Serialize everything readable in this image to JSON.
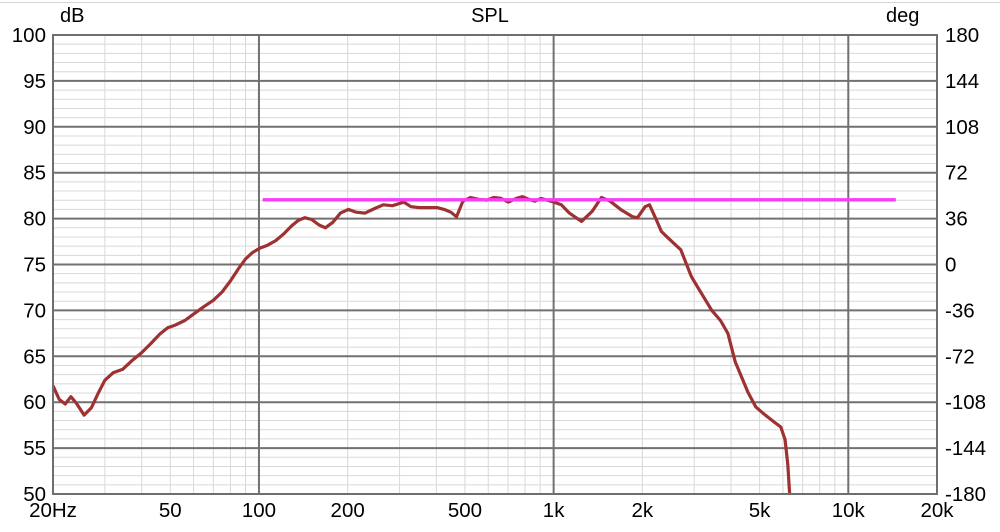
{
  "labels": {
    "left_unit": "dB",
    "title": "SPL",
    "right_unit": "deg"
  },
  "colors": {
    "background": "#ffffff",
    "grid_minor": "#d8d8d8",
    "grid_major": "#717171",
    "plot_border": "#6e6e6e",
    "text": "#000000",
    "spl_curve": "#9e3131",
    "target_line": "#f83cf8"
  },
  "chart_data": {
    "type": "line",
    "title": "SPL",
    "grid": "on",
    "legend": "none",
    "x_axis": {
      "scale": "log",
      "unit": "Hz",
      "min": 20,
      "max": 20000,
      "ticks": [
        {
          "f": 20,
          "label": "20Hz"
        },
        {
          "f": 50,
          "label": "50"
        },
        {
          "f": 100,
          "label": "100"
        },
        {
          "f": 200,
          "label": "200"
        },
        {
          "f": 500,
          "label": "500"
        },
        {
          "f": 1000,
          "label": "1k"
        },
        {
          "f": 2000,
          "label": "2k"
        },
        {
          "f": 5000,
          "label": "5k"
        },
        {
          "f": 10000,
          "label": "10k"
        },
        {
          "f": 20000,
          "label": "20k"
        }
      ]
    },
    "y_left_axis": {
      "unit": "dB",
      "min": 50,
      "max": 100,
      "major_step": 5,
      "minor_step": 1,
      "ticks": [
        100,
        95,
        90,
        85,
        80,
        75,
        70,
        65,
        60,
        55,
        50
      ]
    },
    "y_right_axis": {
      "unit": "deg",
      "min": -180,
      "max": 180,
      "major_step": 36,
      "ticks": [
        180,
        144,
        108,
        72,
        36,
        0,
        -36,
        -72,
        -108,
        -144,
        -180
      ]
    },
    "series": [
      {
        "name": "SPL frequency response",
        "axis": "dB",
        "color": "#9e3131",
        "stroke_width": 3.2,
        "points": [
          [
            20,
            61.8
          ],
          [
            21,
            60.3
          ],
          [
            22,
            59.8
          ],
          [
            23,
            60.6
          ],
          [
            24,
            59.9
          ],
          [
            25.5,
            58.6
          ],
          [
            27,
            59.4
          ],
          [
            28.5,
            61.0
          ],
          [
            30,
            62.4
          ],
          [
            32,
            63.2
          ],
          [
            34.5,
            63.6
          ],
          [
            37,
            64.5
          ],
          [
            40,
            65.4
          ],
          [
            43,
            66.4
          ],
          [
            46,
            67.4
          ],
          [
            49,
            68.1
          ],
          [
            52,
            68.4
          ],
          [
            56,
            68.9
          ],
          [
            60,
            69.6
          ],
          [
            65,
            70.4
          ],
          [
            70,
            71.1
          ],
          [
            75,
            72.0
          ],
          [
            80,
            73.2
          ],
          [
            85,
            74.5
          ],
          [
            90,
            75.6
          ],
          [
            95,
            76.3
          ],
          [
            101,
            76.8
          ],
          [
            107,
            77.1
          ],
          [
            114,
            77.6
          ],
          [
            121,
            78.3
          ],
          [
            129,
            79.2
          ],
          [
            136,
            79.8
          ],
          [
            143,
            80.1
          ],
          [
            151,
            79.9
          ],
          [
            160,
            79.3
          ],
          [
            168,
            79.0
          ],
          [
            178,
            79.6
          ],
          [
            189,
            80.6
          ],
          [
            201,
            81.0
          ],
          [
            214,
            80.7
          ],
          [
            229,
            80.6
          ],
          [
            247,
            81.1
          ],
          [
            264,
            81.5
          ],
          [
            284,
            81.4
          ],
          [
            310,
            81.8
          ],
          [
            328,
            81.3
          ],
          [
            350,
            81.2
          ],
          [
            375,
            81.2
          ],
          [
            402,
            81.2
          ],
          [
            425,
            81.0
          ],
          [
            448,
            80.7
          ],
          [
            468,
            80.2
          ],
          [
            492,
            81.9
          ],
          [
            522,
            82.3
          ],
          [
            556,
            82.1
          ],
          [
            592,
            82.0
          ],
          [
            626,
            82.3
          ],
          [
            663,
            82.2
          ],
          [
            702,
            81.8
          ],
          [
            747,
            82.2
          ],
          [
            783,
            82.4
          ],
          [
            824,
            82.1
          ],
          [
            864,
            81.9
          ],
          [
            905,
            82.2
          ],
          [
            952,
            82.0
          ],
          [
            1002,
            81.8
          ],
          [
            1062,
            81.5
          ],
          [
            1131,
            80.6
          ],
          [
            1243,
            79.7
          ],
          [
            1352,
            80.8
          ],
          [
            1453,
            82.3
          ],
          [
            1555,
            81.9
          ],
          [
            1704,
            80.9
          ],
          [
            1853,
            80.2
          ],
          [
            1926,
            80.1
          ],
          [
            2043,
            81.3
          ],
          [
            2116,
            81.5
          ],
          [
            2235,
            79.8
          ],
          [
            2322,
            78.6
          ],
          [
            2464,
            77.8
          ],
          [
            2702,
            76.6
          ],
          [
            2932,
            73.7
          ],
          [
            3127,
            72.2
          ],
          [
            3443,
            70.0
          ],
          [
            3684,
            68.9
          ],
          [
            3904,
            67.5
          ],
          [
            4131,
            64.4
          ],
          [
            4562,
            61.1
          ],
          [
            4851,
            59.5
          ],
          [
            5133,
            58.8
          ],
          [
            5624,
            57.8
          ],
          [
            5901,
            57.3
          ],
          [
            6104,
            55.9
          ],
          [
            6233,
            53.2
          ],
          [
            6323,
            50.1
          ],
          [
            6360,
            49.5
          ]
        ]
      },
      {
        "name": "Target level",
        "axis": "dB",
        "color": "#f83cf8",
        "stroke_width": 3.4,
        "points": [
          [
            103,
            82.05
          ],
          [
            14500,
            82.05
          ]
        ]
      }
    ]
  }
}
